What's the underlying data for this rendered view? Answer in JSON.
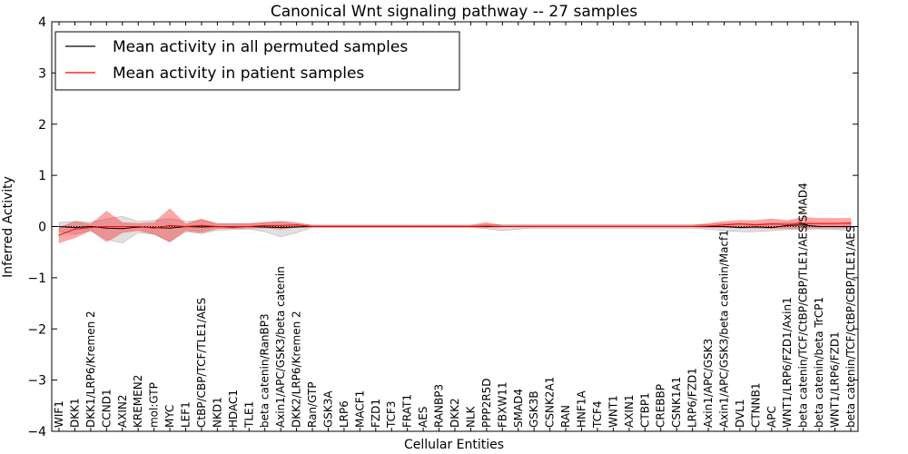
{
  "chart_data": {
    "type": "line",
    "title": "Canonical Wnt signaling pathway -- 27 samples",
    "xlabel": "Cellular Entities",
    "ylabel": "Inferred Activity",
    "ylim": [
      -4,
      4
    ],
    "yticks": [
      -4,
      -3,
      -2,
      -1,
      0,
      1,
      2,
      3,
      4
    ],
    "ytick_labels": [
      "−4",
      "−3",
      "−2",
      "−1",
      "0",
      "1",
      "2",
      "3",
      "4"
    ],
    "legend_position": "top-left",
    "categories": [
      "WIF1",
      "DKK1",
      "DKK1/LRP6/Kremen 2",
      "CCND1",
      "AXIN2",
      "KREMEN2",
      "mol:GTP",
      "MYC",
      "LEF1",
      "CtBP/CBP/TCF/TLE1/AES",
      "NKD1",
      "HDAC1",
      "TLE1",
      "beta catenin/RanBP3",
      "Axin1/APC/GSK3/beta catenin",
      "DKK2/LRP6/Kremen 2",
      "Ran/GTP",
      "GSK3A",
      "LRP6",
      "MACF1",
      "FZD1",
      "TCF3",
      "FRAT1",
      "AES",
      "RANBP3",
      "DKK2",
      "NLK",
      "PPP2R5D",
      "FBXW11",
      "SMAD4",
      "GSK3B",
      "CSNK2A1",
      "RAN",
      "HNF1A",
      "TCF4",
      "WNT1",
      "AXIN1",
      "CTBP1",
      "CREBBP",
      "CSNK1A1",
      "LRP6/FZD1",
      "Axin1/APC/GSK3",
      "Axin1/APC/GSK3/beta catenin/Macf1",
      "DVL1",
      "CTNNB1",
      "APC",
      "WNT1/LRP6/FZD1/Axin1",
      "beta catenin/TCF/CtBP/CBP/TLE1/AES/SMAD4",
      "beta catenin/beta TrCP1",
      "WNT1/LRP6/FZD1",
      "beta catenin/TCF/CtBP/CBP/TLE1/AES"
    ],
    "series": [
      {
        "name": "Mean activity in all permuted samples",
        "color": "#000000",
        "values": [
          0.0,
          -0.02,
          0.0,
          -0.03,
          -0.04,
          -0.01,
          -0.02,
          -0.03,
          0.0,
          -0.01,
          0.0,
          -0.01,
          0.0,
          -0.01,
          -0.02,
          -0.01,
          0.0,
          0.0,
          0.0,
          0.0,
          0.0,
          0.0,
          0.0,
          0.0,
          0.0,
          0.0,
          0.0,
          0.0,
          0.0,
          0.0,
          0.0,
          0.0,
          0.0,
          0.0,
          0.0,
          0.0,
          0.0,
          0.0,
          0.0,
          0.0,
          0.0,
          0.0,
          0.0,
          -0.02,
          -0.01,
          -0.02,
          0.02,
          0.03,
          0.0,
          0.0,
          0.0
        ],
        "lower": [
          -0.1,
          -0.15,
          -0.08,
          -0.25,
          -0.32,
          -0.12,
          -0.15,
          -0.3,
          -0.1,
          -0.14,
          -0.07,
          -0.06,
          -0.05,
          -0.1,
          -0.2,
          -0.12,
          -0.02,
          -0.02,
          -0.02,
          -0.02,
          -0.02,
          -0.02,
          -0.02,
          -0.02,
          -0.02,
          -0.02,
          -0.02,
          -0.04,
          -0.08,
          -0.05,
          -0.03,
          -0.03,
          -0.03,
          -0.03,
          -0.03,
          -0.03,
          -0.03,
          -0.03,
          -0.03,
          -0.03,
          -0.03,
          -0.05,
          -0.08,
          -0.1,
          -0.1,
          -0.08,
          -0.06,
          -0.05,
          -0.05,
          -0.06,
          -0.07
        ],
        "upper": [
          0.08,
          0.1,
          0.08,
          0.15,
          0.2,
          0.1,
          0.12,
          0.15,
          0.1,
          0.12,
          0.06,
          0.06,
          0.05,
          0.08,
          0.1,
          0.08,
          0.02,
          0.02,
          0.02,
          0.02,
          0.02,
          0.02,
          0.02,
          0.02,
          0.02,
          0.02,
          0.02,
          0.04,
          0.04,
          0.03,
          0.03,
          0.03,
          0.03,
          0.03,
          0.03,
          0.03,
          0.03,
          0.03,
          0.03,
          0.03,
          0.03,
          0.04,
          0.06,
          0.06,
          0.06,
          0.06,
          0.08,
          0.08,
          0.06,
          0.06,
          0.06
        ]
      },
      {
        "name": "Mean activity in patient samples",
        "color": "#ff0000",
        "values": [
          -0.17,
          -0.05,
          -0.02,
          0.0,
          0.0,
          0.0,
          -0.03,
          0.02,
          0.0,
          0.02,
          0.0,
          0.0,
          0.0,
          0.02,
          0.02,
          0.03,
          0.0,
          0.0,
          0.0,
          0.0,
          0.0,
          0.0,
          0.0,
          0.0,
          0.0,
          0.0,
          0.0,
          0.01,
          0.0,
          0.0,
          0.0,
          0.0,
          0.0,
          0.0,
          0.0,
          0.0,
          0.0,
          0.0,
          0.0,
          0.0,
          0.0,
          0.01,
          0.03,
          0.05,
          0.03,
          0.05,
          0.04,
          0.06,
          0.06,
          0.06,
          0.07
        ],
        "lower": [
          -0.32,
          -0.22,
          -0.08,
          -0.3,
          -0.12,
          -0.08,
          -0.15,
          -0.3,
          -0.08,
          -0.12,
          -0.04,
          -0.04,
          -0.03,
          -0.03,
          -0.05,
          -0.02,
          -0.01,
          -0.01,
          -0.01,
          -0.01,
          -0.01,
          -0.01,
          -0.01,
          -0.01,
          -0.01,
          -0.01,
          -0.01,
          -0.02,
          -0.01,
          -0.01,
          -0.01,
          -0.01,
          -0.01,
          -0.01,
          -0.01,
          -0.01,
          -0.01,
          -0.01,
          -0.01,
          -0.01,
          -0.01,
          -0.02,
          -0.02,
          -0.03,
          -0.03,
          -0.04,
          -0.04,
          -0.03,
          -0.03,
          -0.03,
          -0.03
        ],
        "upper": [
          -0.02,
          0.1,
          0.05,
          0.3,
          0.08,
          0.06,
          0.08,
          0.35,
          0.05,
          0.15,
          0.05,
          0.05,
          0.06,
          0.08,
          0.1,
          0.06,
          0.03,
          0.03,
          0.03,
          0.03,
          0.03,
          0.03,
          0.03,
          0.03,
          0.03,
          0.03,
          0.03,
          0.08,
          0.02,
          0.03,
          0.03,
          0.03,
          0.03,
          0.03,
          0.03,
          0.03,
          0.03,
          0.03,
          0.03,
          0.03,
          0.03,
          0.06,
          0.1,
          0.12,
          0.12,
          0.15,
          0.12,
          0.18,
          0.16,
          0.16,
          0.16
        ]
      }
    ]
  }
}
